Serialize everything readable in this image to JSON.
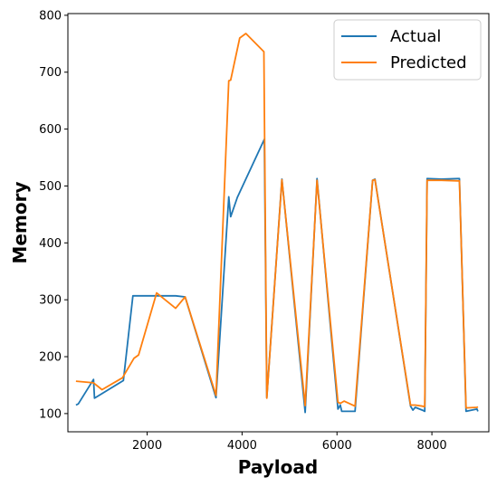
{
  "chart_data": {
    "type": "line",
    "title": "",
    "xlabel": "Payload",
    "ylabel": "Memory",
    "xlim": [
      330,
      9200
    ],
    "ylim": [
      68,
      803
    ],
    "xticks": [
      2000,
      4000,
      6000,
      8000
    ],
    "yticks": [
      100,
      200,
      300,
      400,
      500,
      600,
      700,
      800
    ],
    "grid": false,
    "legend_position": "top-right",
    "series": [
      {
        "name": "Actual",
        "color": "#1f77b4",
        "x": [
          500,
          550,
          870,
          890,
          1500,
          1700,
          2000,
          2200,
          2600,
          2800,
          3450,
          3720,
          3760,
          3900,
          4470,
          4520,
          4840,
          5330,
          5580,
          6020,
          6070,
          6100,
          6120,
          6200,
          6380,
          6750,
          6800,
          7550,
          7600,
          7650,
          7800,
          7850,
          7900,
          8200,
          8550,
          8580,
          8720,
          8950,
          8970
        ],
        "y": [
          115,
          117,
          160,
          127,
          158,
          307,
          307,
          307,
          307,
          305,
          128,
          481,
          446,
          480,
          582,
          128,
          512,
          102,
          513,
          108,
          115,
          104,
          104,
          104,
          104,
          510,
          512,
          113,
          106,
          111,
          106,
          104,
          513,
          512,
          513,
          513,
          104,
          108,
          104
        ]
      },
      {
        "name": "Predicted",
        "color": "#ff7f0e",
        "x": [
          500,
          870,
          1050,
          1480,
          1720,
          1820,
          2200,
          2600,
          2800,
          3450,
          3720,
          3760,
          3950,
          4080,
          4460,
          4520,
          4840,
          5330,
          5580,
          6020,
          6070,
          6150,
          6200,
          6380,
          6750,
          6800,
          7550,
          7650,
          7800,
          7850,
          7900,
          8200,
          8550,
          8580,
          8720,
          8950,
          8970
        ],
        "y": [
          157,
          154,
          142,
          163,
          197,
          203,
          312,
          285,
          305,
          132,
          685,
          686,
          760,
          768,
          736,
          127,
          511,
          114,
          510,
          120,
          118,
          122,
          120,
          113,
          510,
          511,
          115,
          115,
          113,
          112,
          510,
          510,
          509,
          509,
          110,
          111,
          112
        ]
      }
    ]
  }
}
